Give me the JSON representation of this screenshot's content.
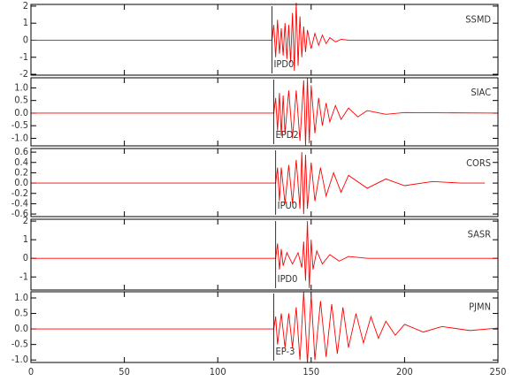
{
  "chart_data": [
    {
      "type": "line",
      "label": "SSMD",
      "color": "#ff0000",
      "annotation": {
        "text": "IPD0",
        "x": 129
      },
      "xlim": [
        0,
        250
      ],
      "xticks": [
        0,
        50,
        100,
        150,
        200,
        250
      ],
      "ylim": [
        -2.05,
        2.1
      ],
      "yticks": [
        -2,
        -1,
        0,
        1,
        2
      ],
      "x": [
        0,
        129,
        130,
        131,
        132,
        133,
        134,
        135,
        136,
        137,
        138,
        139,
        140,
        141,
        142,
        143,
        144,
        145,
        146,
        147,
        148,
        150,
        152,
        154,
        156,
        158,
        160,
        163,
        166,
        170,
        250
      ],
      "values": [
        0,
        0,
        0.9,
        -1.0,
        1.2,
        -0.8,
        0.7,
        -0.9,
        1.0,
        -1.1,
        0.9,
        -1.3,
        1.6,
        -1.8,
        2.2,
        -1.5,
        1.4,
        -1.0,
        0.8,
        -0.7,
        0.6,
        -0.5,
        0.4,
        -0.3,
        0.3,
        -0.2,
        0.15,
        -0.1,
        0.05,
        0,
        0
      ]
    },
    {
      "type": "line",
      "label": "SIAC",
      "color": "#ff0000",
      "annotation": {
        "text": "EPD2",
        "x": 130
      },
      "xlim": [
        0,
        250
      ],
      "xticks": [
        0,
        50,
        100,
        150,
        200,
        250
      ],
      "ylim": [
        -1.3,
        1.4
      ],
      "yticks": [
        {
          "value": -1,
          "label": "-1.0"
        },
        -0.5,
        {
          "value": 0,
          "label": "0.0"
        },
        0.5,
        {
          "value": 1,
          "label": "1.0"
        }
      ],
      "x": [
        0,
        130,
        131,
        132,
        133,
        134,
        135,
        136,
        138,
        140,
        142,
        144,
        146,
        147,
        148,
        149,
        150,
        152,
        154,
        156,
        158,
        160,
        163,
        166,
        170,
        175,
        180,
        190,
        200,
        250
      ],
      "values": [
        0,
        0,
        0.6,
        -0.7,
        0.8,
        -0.9,
        0.7,
        -0.8,
        0.9,
        -1.0,
        0.9,
        -1.1,
        1.3,
        -1.3,
        1.4,
        -1.2,
        1.1,
        -0.8,
        0.6,
        -0.5,
        0.4,
        -0.35,
        0.3,
        -0.25,
        0.2,
        -0.15,
        0.1,
        -0.05,
        0.02,
        0
      ]
    },
    {
      "type": "line",
      "label": "CORS",
      "color": "#ff0000",
      "annotation": {
        "text": "IPU0",
        "x": 131
      },
      "xlim": [
        0,
        250
      ],
      "xticks": [
        0,
        50,
        100,
        150,
        200,
        250
      ],
      "ylim": [
        -0.65,
        0.67
      ],
      "yticks": [
        -0.6,
        -0.4,
        -0.2,
        {
          "value": 0,
          "label": "0.0"
        },
        0.2,
        0.4,
        0.6
      ],
      "x": [
        0,
        131,
        132,
        133,
        134,
        136,
        138,
        140,
        142,
        144,
        145,
        146,
        147,
        148,
        150,
        152,
        155,
        158,
        162,
        166,
        170,
        180,
        190,
        200,
        215,
        230,
        243
      ],
      "values": [
        0,
        0,
        0.3,
        -0.35,
        0.3,
        -0.4,
        0.35,
        -0.4,
        0.45,
        -0.5,
        0.6,
        -0.6,
        0.55,
        -0.5,
        0.4,
        -0.35,
        0.3,
        -0.25,
        0.2,
        -0.18,
        0.15,
        -0.1,
        0.08,
        -0.05,
        0.03,
        0,
        0
      ]
    },
    {
      "type": "line",
      "label": "SASR",
      "color": "#ff0000",
      "annotation": {
        "text": "IPD0",
        "x": 131
      },
      "xlim": [
        0,
        250
      ],
      "xticks": [
        0,
        50,
        100,
        150,
        200,
        250
      ],
      "ylim": [
        -1.7,
        2.1
      ],
      "yticks": [
        -1,
        0,
        1,
        2
      ],
      "x": [
        0,
        131,
        132,
        133,
        134,
        135,
        137,
        140,
        143,
        145,
        146,
        147,
        148,
        149,
        150,
        151,
        153,
        156,
        160,
        165,
        170,
        180,
        250
      ],
      "values": [
        0,
        0,
        0.8,
        -0.6,
        0.5,
        -0.4,
        0.3,
        -0.3,
        0.3,
        -0.5,
        0.9,
        -1.2,
        2.0,
        -1.6,
        1.0,
        -0.6,
        0.4,
        -0.3,
        0.2,
        -0.15,
        0.1,
        0,
        0
      ]
    },
    {
      "type": "line",
      "label": "PJMN",
      "color": "#ff0000",
      "annotation": {
        "text": "EP-3",
        "x": 130
      },
      "xlim": [
        0,
        250
      ],
      "xticks": [
        0,
        50,
        100,
        150,
        200,
        250
      ],
      "ylim": [
        -1.08,
        1.2
      ],
      "yticks": [
        {
          "value": -1,
          "label": "-1.0"
        },
        -0.5,
        {
          "value": 0,
          "label": "0.0"
        },
        0.5,
        {
          "value": 1,
          "label": "1.0"
        }
      ],
      "x": [
        0,
        130,
        131,
        132,
        134,
        136,
        138,
        140,
        142,
        144,
        146,
        148,
        150,
        152,
        155,
        158,
        161,
        164,
        167,
        170,
        174,
        178,
        182,
        186,
        190,
        195,
        200,
        210,
        220,
        235,
        250
      ],
      "values": [
        0,
        0,
        0.4,
        -0.5,
        0.5,
        -0.6,
        0.5,
        -0.6,
        0.7,
        -1.0,
        1.2,
        -1.1,
        1.1,
        -1.0,
        0.9,
        -0.9,
        0.8,
        -0.8,
        0.7,
        -0.6,
        0.5,
        -0.45,
        0.4,
        -0.3,
        0.25,
        -0.2,
        0.15,
        -0.1,
        0.08,
        -0.05,
        0.03
      ]
    }
  ]
}
